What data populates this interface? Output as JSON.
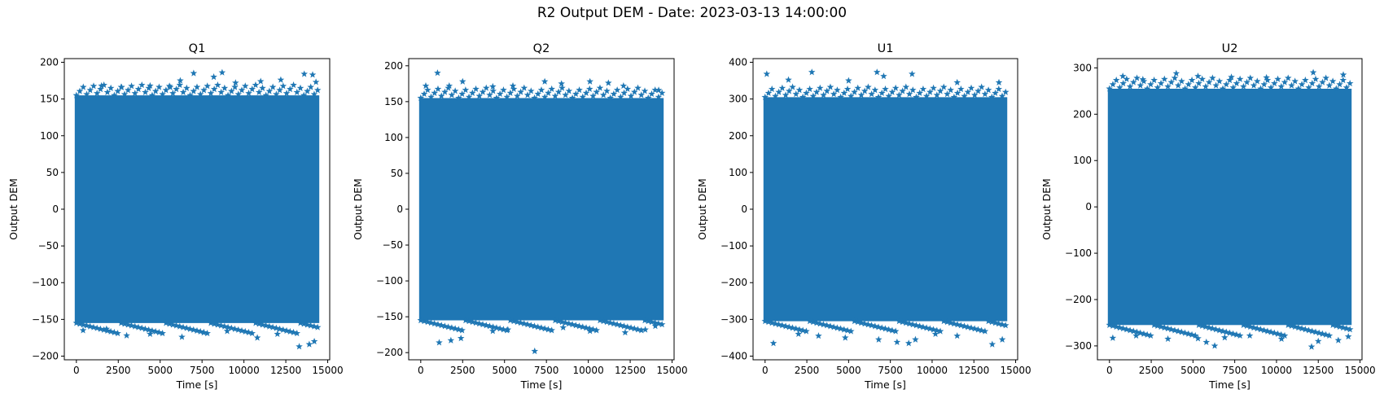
{
  "title": "R2 Output DEM - Date: 2023-03-13 14:00:00",
  "colors": {
    "series": "#1f77b4"
  },
  "chart_data": [
    {
      "type": "scatter",
      "title": "Q1",
      "xlabel": "Time [s]",
      "ylabel": "Output DEM",
      "marker": "star",
      "x_range": [
        0,
        14400
      ],
      "xlim": [
        -720,
        15120
      ],
      "ylim": [
        -205,
        205
      ],
      "xticks": [
        0,
        2500,
        5000,
        7500,
        10000,
        12500,
        15000
      ],
      "yticks": [
        -200,
        -150,
        -100,
        -50,
        0,
        50,
        100,
        150,
        200
      ],
      "band": [
        -155,
        155
      ],
      "outliers": [
        [
          1500,
          168
        ],
        [
          2700,
          166
        ],
        [
          4400,
          168
        ],
        [
          5600,
          166
        ],
        [
          6200,
          175
        ],
        [
          7000,
          185
        ],
        [
          8200,
          180
        ],
        [
          8700,
          186
        ],
        [
          9500,
          172
        ],
        [
          11000,
          174
        ],
        [
          12200,
          176
        ],
        [
          13600,
          184
        ],
        [
          14100,
          183
        ],
        [
          14300,
          173
        ],
        [
          400,
          -165
        ],
        [
          1800,
          -163
        ],
        [
          3000,
          -172
        ],
        [
          4400,
          -170
        ],
        [
          6300,
          -174
        ],
        [
          7600,
          -168
        ],
        [
          9000,
          -166
        ],
        [
          10800,
          -175
        ],
        [
          12000,
          -170
        ],
        [
          13300,
          -187
        ],
        [
          13900,
          -184
        ],
        [
          14200,
          -180
        ]
      ],
      "grid": false
    },
    {
      "type": "scatter",
      "title": "Q2",
      "xlabel": "Time [s]",
      "ylabel": "Output DEM",
      "marker": "star",
      "x_range": [
        0,
        14400
      ],
      "xlim": [
        -720,
        15120
      ],
      "ylim": [
        -210,
        210
      ],
      "xticks": [
        0,
        2500,
        5000,
        7500,
        10000,
        12500,
        15000
      ],
      "yticks": [
        -200,
        -150,
        -100,
        -50,
        0,
        50,
        100,
        150,
        200
      ],
      "band": [
        -155,
        155
      ],
      "outliers": [
        [
          300,
          172
        ],
        [
          1000,
          190
        ],
        [
          1700,
          172
        ],
        [
          2500,
          178
        ],
        [
          4300,
          171
        ],
        [
          5500,
          172
        ],
        [
          7400,
          178
        ],
        [
          8400,
          175
        ],
        [
          10100,
          178
        ],
        [
          11200,
          176
        ],
        [
          12100,
          172
        ],
        [
          14200,
          166
        ],
        [
          1100,
          -186
        ],
        [
          1800,
          -183
        ],
        [
          2400,
          -180
        ],
        [
          4300,
          -170
        ],
        [
          5200,
          -168
        ],
        [
          6800,
          -198
        ],
        [
          8500,
          -165
        ],
        [
          10100,
          -170
        ],
        [
          12200,
          -172
        ],
        [
          13400,
          -168
        ],
        [
          14000,
          -163
        ]
      ],
      "grid": false
    },
    {
      "type": "scatter",
      "title": "U1",
      "xlabel": "Time [s]",
      "ylabel": "Output DEM",
      "marker": "star",
      "x_range": [
        0,
        14400
      ],
      "xlim": [
        -720,
        15120
      ],
      "ylim": [
        -410,
        410
      ],
      "xticks": [
        0,
        2500,
        5000,
        7500,
        10000,
        12500,
        15000
      ],
      "yticks": [
        -400,
        -300,
        -200,
        -100,
        0,
        100,
        200,
        300,
        400
      ],
      "band": [
        -305,
        305
      ],
      "outliers": [
        [
          100,
          368
        ],
        [
          1400,
          352
        ],
        [
          2800,
          373
        ],
        [
          5000,
          350
        ],
        [
          6700,
          373
        ],
        [
          7100,
          362
        ],
        [
          8800,
          368
        ],
        [
          11500,
          345
        ],
        [
          14000,
          345
        ],
        [
          500,
          -365
        ],
        [
          2000,
          -340
        ],
        [
          3200,
          -345
        ],
        [
          4800,
          -350
        ],
        [
          6800,
          -355
        ],
        [
          7900,
          -362
        ],
        [
          8600,
          -365
        ],
        [
          9000,
          -355
        ],
        [
          10200,
          -340
        ],
        [
          11500,
          -345
        ],
        [
          13600,
          -368
        ],
        [
          14200,
          -355
        ]
      ],
      "grid": false
    },
    {
      "type": "scatter",
      "title": "U2",
      "xlabel": "Time [s]",
      "ylabel": "Output DEM",
      "marker": "star",
      "x_range": [
        0,
        14400
      ],
      "xlim": [
        -720,
        15120
      ],
      "ylim": [
        -330,
        320
      ],
      "xticks": [
        0,
        2500,
        5000,
        7500,
        10000,
        12500,
        15000
      ],
      "yticks": [
        -300,
        -200,
        -100,
        0,
        100,
        200,
        300
      ],
      "band": [
        -255,
        255
      ],
      "outliers": [
        [
          800,
          282
        ],
        [
          2000,
          275
        ],
        [
          4000,
          288
        ],
        [
          5300,
          282
        ],
        [
          7300,
          280
        ],
        [
          9400,
          279
        ],
        [
          12200,
          290
        ],
        [
          14000,
          285
        ],
        [
          200,
          -283
        ],
        [
          1600,
          -278
        ],
        [
          3500,
          -285
        ],
        [
          5300,
          -284
        ],
        [
          5800,
          -292
        ],
        [
          6300,
          -300
        ],
        [
          6900,
          -282
        ],
        [
          8400,
          -278
        ],
        [
          10300,
          -285
        ],
        [
          12100,
          -302
        ],
        [
          12500,
          -290
        ],
        [
          13700,
          -288
        ],
        [
          14300,
          -280
        ]
      ],
      "grid": false
    }
  ]
}
